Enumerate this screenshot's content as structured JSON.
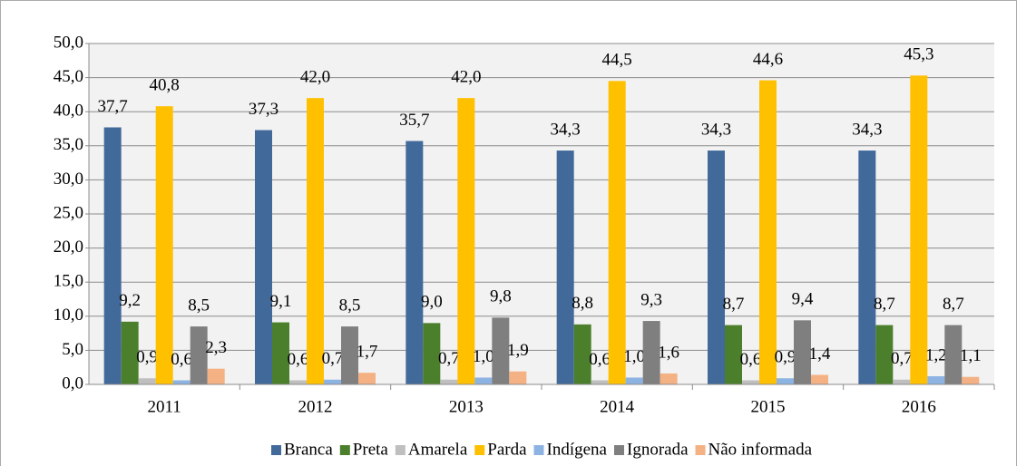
{
  "chart_data": {
    "type": "bar",
    "categories": [
      "2011",
      "2012",
      "2013",
      "2014",
      "2015",
      "2016"
    ],
    "series": [
      {
        "name": "Branca",
        "color": "#41699a",
        "values": [
          37.7,
          37.3,
          35.7,
          34.3,
          34.3,
          34.3
        ],
        "value_labels": [
          "37,7",
          "37,3",
          "35,7",
          "34,3",
          "34,3",
          "34,3"
        ]
      },
      {
        "name": "Preta",
        "color": "#4c7f2c",
        "values": [
          9.2,
          9.1,
          9.0,
          8.8,
          8.7,
          8.7
        ],
        "value_labels": [
          "9,2",
          "9,1",
          "9,0",
          "8,8",
          "8,7",
          "8,7"
        ]
      },
      {
        "name": "Amarela",
        "color": "#bfbfbf",
        "values": [
          0.9,
          0.6,
          0.7,
          0.6,
          0.6,
          0.7
        ],
        "value_labels": [
          "0,9",
          "0,6",
          "0,7",
          "0,6",
          "0,6",
          "0,7"
        ]
      },
      {
        "name": "Parda",
        "color": "#ffc000",
        "values": [
          40.8,
          42.0,
          42.0,
          44.5,
          44.6,
          45.3
        ],
        "value_labels": [
          "40,8",
          "42,0",
          "42,0",
          "44,5",
          "44,6",
          "45,3"
        ]
      },
      {
        "name": "Indígena",
        "color": "#8db3e2",
        "values": [
          0.6,
          0.7,
          1.0,
          1.0,
          0.9,
          1.2
        ],
        "value_labels": [
          "0,6",
          "0,7",
          "1,0",
          "1,0",
          "0,9",
          "1,2"
        ]
      },
      {
        "name": "Ignorada",
        "color": "#7f7f7f",
        "values": [
          8.5,
          8.5,
          9.8,
          9.3,
          9.4,
          8.7
        ],
        "value_labels": [
          "8,5",
          "8,5",
          "9,8",
          "9,3",
          "9,4",
          "8,7"
        ]
      },
      {
        "name": "Não informada",
        "color": "#f4b183",
        "values": [
          2.3,
          1.7,
          1.9,
          1.6,
          1.4,
          1.1
        ],
        "value_labels": [
          "2,3",
          "1,7",
          "1,9",
          "1,6",
          "1,4",
          "1,1"
        ]
      }
    ],
    "ylim": [
      0,
      50
    ],
    "yticks": [
      {
        "value": 0,
        "label": "0,0"
      },
      {
        "value": 5,
        "label": "5,0"
      },
      {
        "value": 10,
        "label": "10,0"
      },
      {
        "value": 15,
        "label": "15,0"
      },
      {
        "value": 20,
        "label": "20,0"
      },
      {
        "value": 25,
        "label": "25,0"
      },
      {
        "value": 30,
        "label": "30,0"
      },
      {
        "value": 35,
        "label": "35,0"
      },
      {
        "value": 40,
        "label": "40,0"
      },
      {
        "value": 45,
        "label": "45,0"
      },
      {
        "value": 50,
        "label": "50,0"
      }
    ],
    "grid": true,
    "legend": "bottom"
  }
}
